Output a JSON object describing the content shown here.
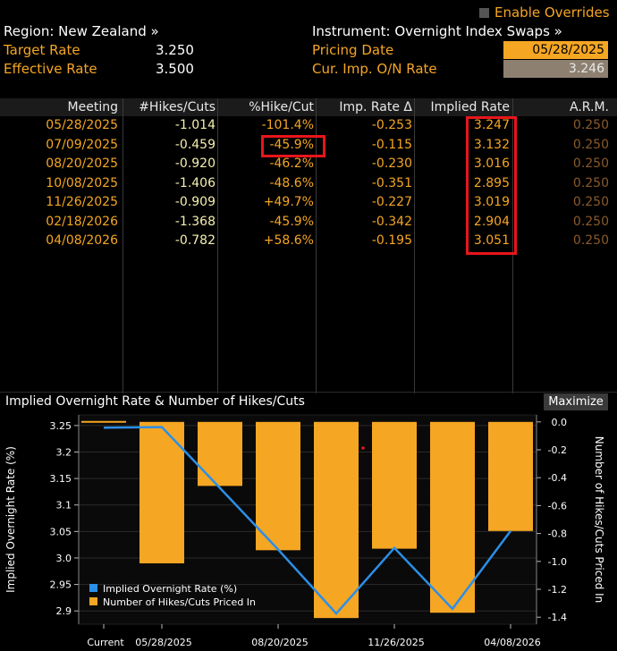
{
  "header": {
    "region_label": "Region: New Zealand »",
    "enable_overrides": "Enable Overrides",
    "target_rate_label": "Target Rate",
    "target_rate_value": "3.250",
    "effective_rate_label": "Effective Rate",
    "effective_rate_value": "3.500",
    "instrument_label": "Instrument: Overnight Index Swaps »",
    "pricing_date_label": "Pricing Date",
    "pricing_date_value": "05/28/2025",
    "cur_imp_label": "Cur. Imp. O/N Rate",
    "cur_imp_value": "3.246"
  },
  "table": {
    "columns": [
      "Meeting",
      "#Hikes/Cuts",
      "%Hike/Cut",
      "Imp. Rate Δ",
      "Implied Rate",
      "A.R.M."
    ],
    "rows": [
      [
        "05/28/2025",
        "-1.014",
        "-101.4%",
        "-0.253",
        "3.247",
        "0.250"
      ],
      [
        "07/09/2025",
        "-0.459",
        "-45.9%",
        "-0.115",
        "3.132",
        "0.250"
      ],
      [
        "08/20/2025",
        "-0.920",
        "-46.2%",
        "-0.230",
        "3.016",
        "0.250"
      ],
      [
        "10/08/2025",
        "-1.406",
        "-48.6%",
        "-0.351",
        "2.895",
        "0.250"
      ],
      [
        "11/26/2025",
        "-0.909",
        "+49.7%",
        "-0.227",
        "3.019",
        "0.250"
      ],
      [
        "02/18/2026",
        "-1.368",
        "-45.9%",
        "-0.342",
        "2.904",
        "0.250"
      ],
      [
        "04/08/2026",
        "-0.782",
        "+58.6%",
        "-0.195",
        "3.051",
        "0.250"
      ]
    ]
  },
  "chart_panel": {
    "title": "Implied Overnight Rate & Number of Hikes/Cuts",
    "maximize_label": "Maximize"
  },
  "chart_data": {
    "type": "bar+line",
    "x_tick_labels": [
      "Current",
      "05/28/2025",
      "08/20/2025",
      "11/26/2025",
      "04/08/2026"
    ],
    "categories": [
      "Current",
      "05/28/2025",
      "07/09/2025",
      "08/20/2025",
      "10/08/2025",
      "11/26/2025",
      "02/18/2026",
      "04/08/2026"
    ],
    "line": {
      "name": "Implied Overnight Rate (%)",
      "color": "#2b8fe8",
      "values": [
        3.246,
        3.247,
        3.132,
        3.016,
        2.895,
        3.019,
        2.904,
        3.051
      ]
    },
    "bars": {
      "name": "Number of Hikes/Cuts Priced In",
      "color": "#f5a623",
      "values": [
        0.0,
        -1.014,
        -0.459,
        -0.92,
        -1.406,
        -0.909,
        -1.368,
        -0.782
      ]
    },
    "left_axis": {
      "label": "Implied Overnight Rate (%)",
      "ticks": [
        "3.25",
        "3.2",
        "3.15",
        "3.1",
        "3.05",
        "3.0",
        "2.95",
        "2.9"
      ],
      "range": [
        2.875,
        3.27
      ]
    },
    "right_axis": {
      "label": "Number of Hikes/Cuts Priced In",
      "ticks": [
        "0.0",
        "-0.2",
        "-0.4",
        "-0.6",
        "-0.8",
        "-1.0",
        "-1.2",
        "-1.4"
      ],
      "range": [
        -1.45,
        0.05
      ]
    },
    "legend_position": "bottom-left",
    "grid": true
  }
}
